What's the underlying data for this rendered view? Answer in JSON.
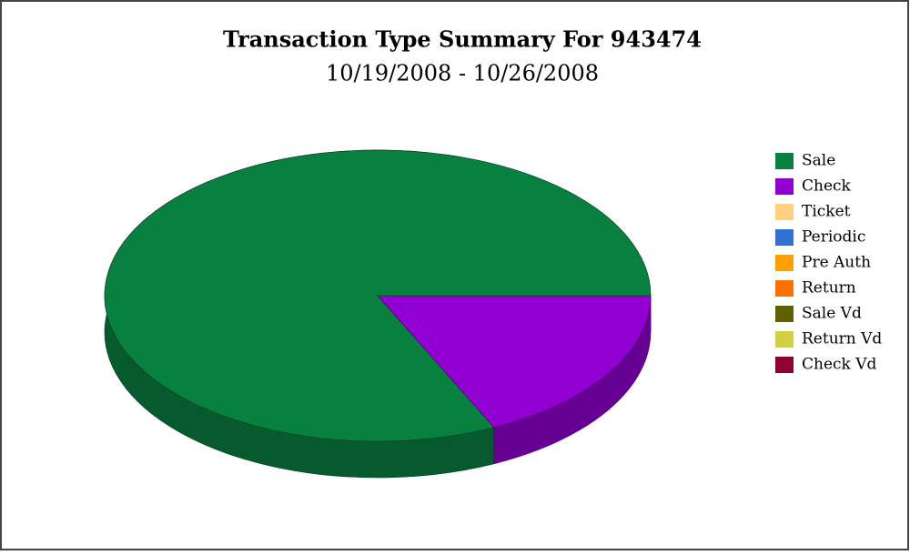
{
  "chart_data": {
    "type": "pie",
    "title": "Transaction Type Summary For 943474",
    "subtitle": "10/19/2008 - 10/26/2008",
    "categories": [
      "Sale",
      "Check",
      "Ticket",
      "Periodic",
      "Pre Auth",
      "Return",
      "Sale Vd",
      "Return Vd",
      "Check Vd"
    ],
    "values": [
      82,
      18,
      0,
      0,
      0,
      0,
      0,
      0,
      0
    ],
    "colors": [
      "#088040",
      "#9000d0",
      "#ffd080",
      "#3070d0",
      "#ffa000",
      "#ff7000",
      "#606000",
      "#d0d040",
      "#900030"
    ],
    "legend": "right"
  }
}
